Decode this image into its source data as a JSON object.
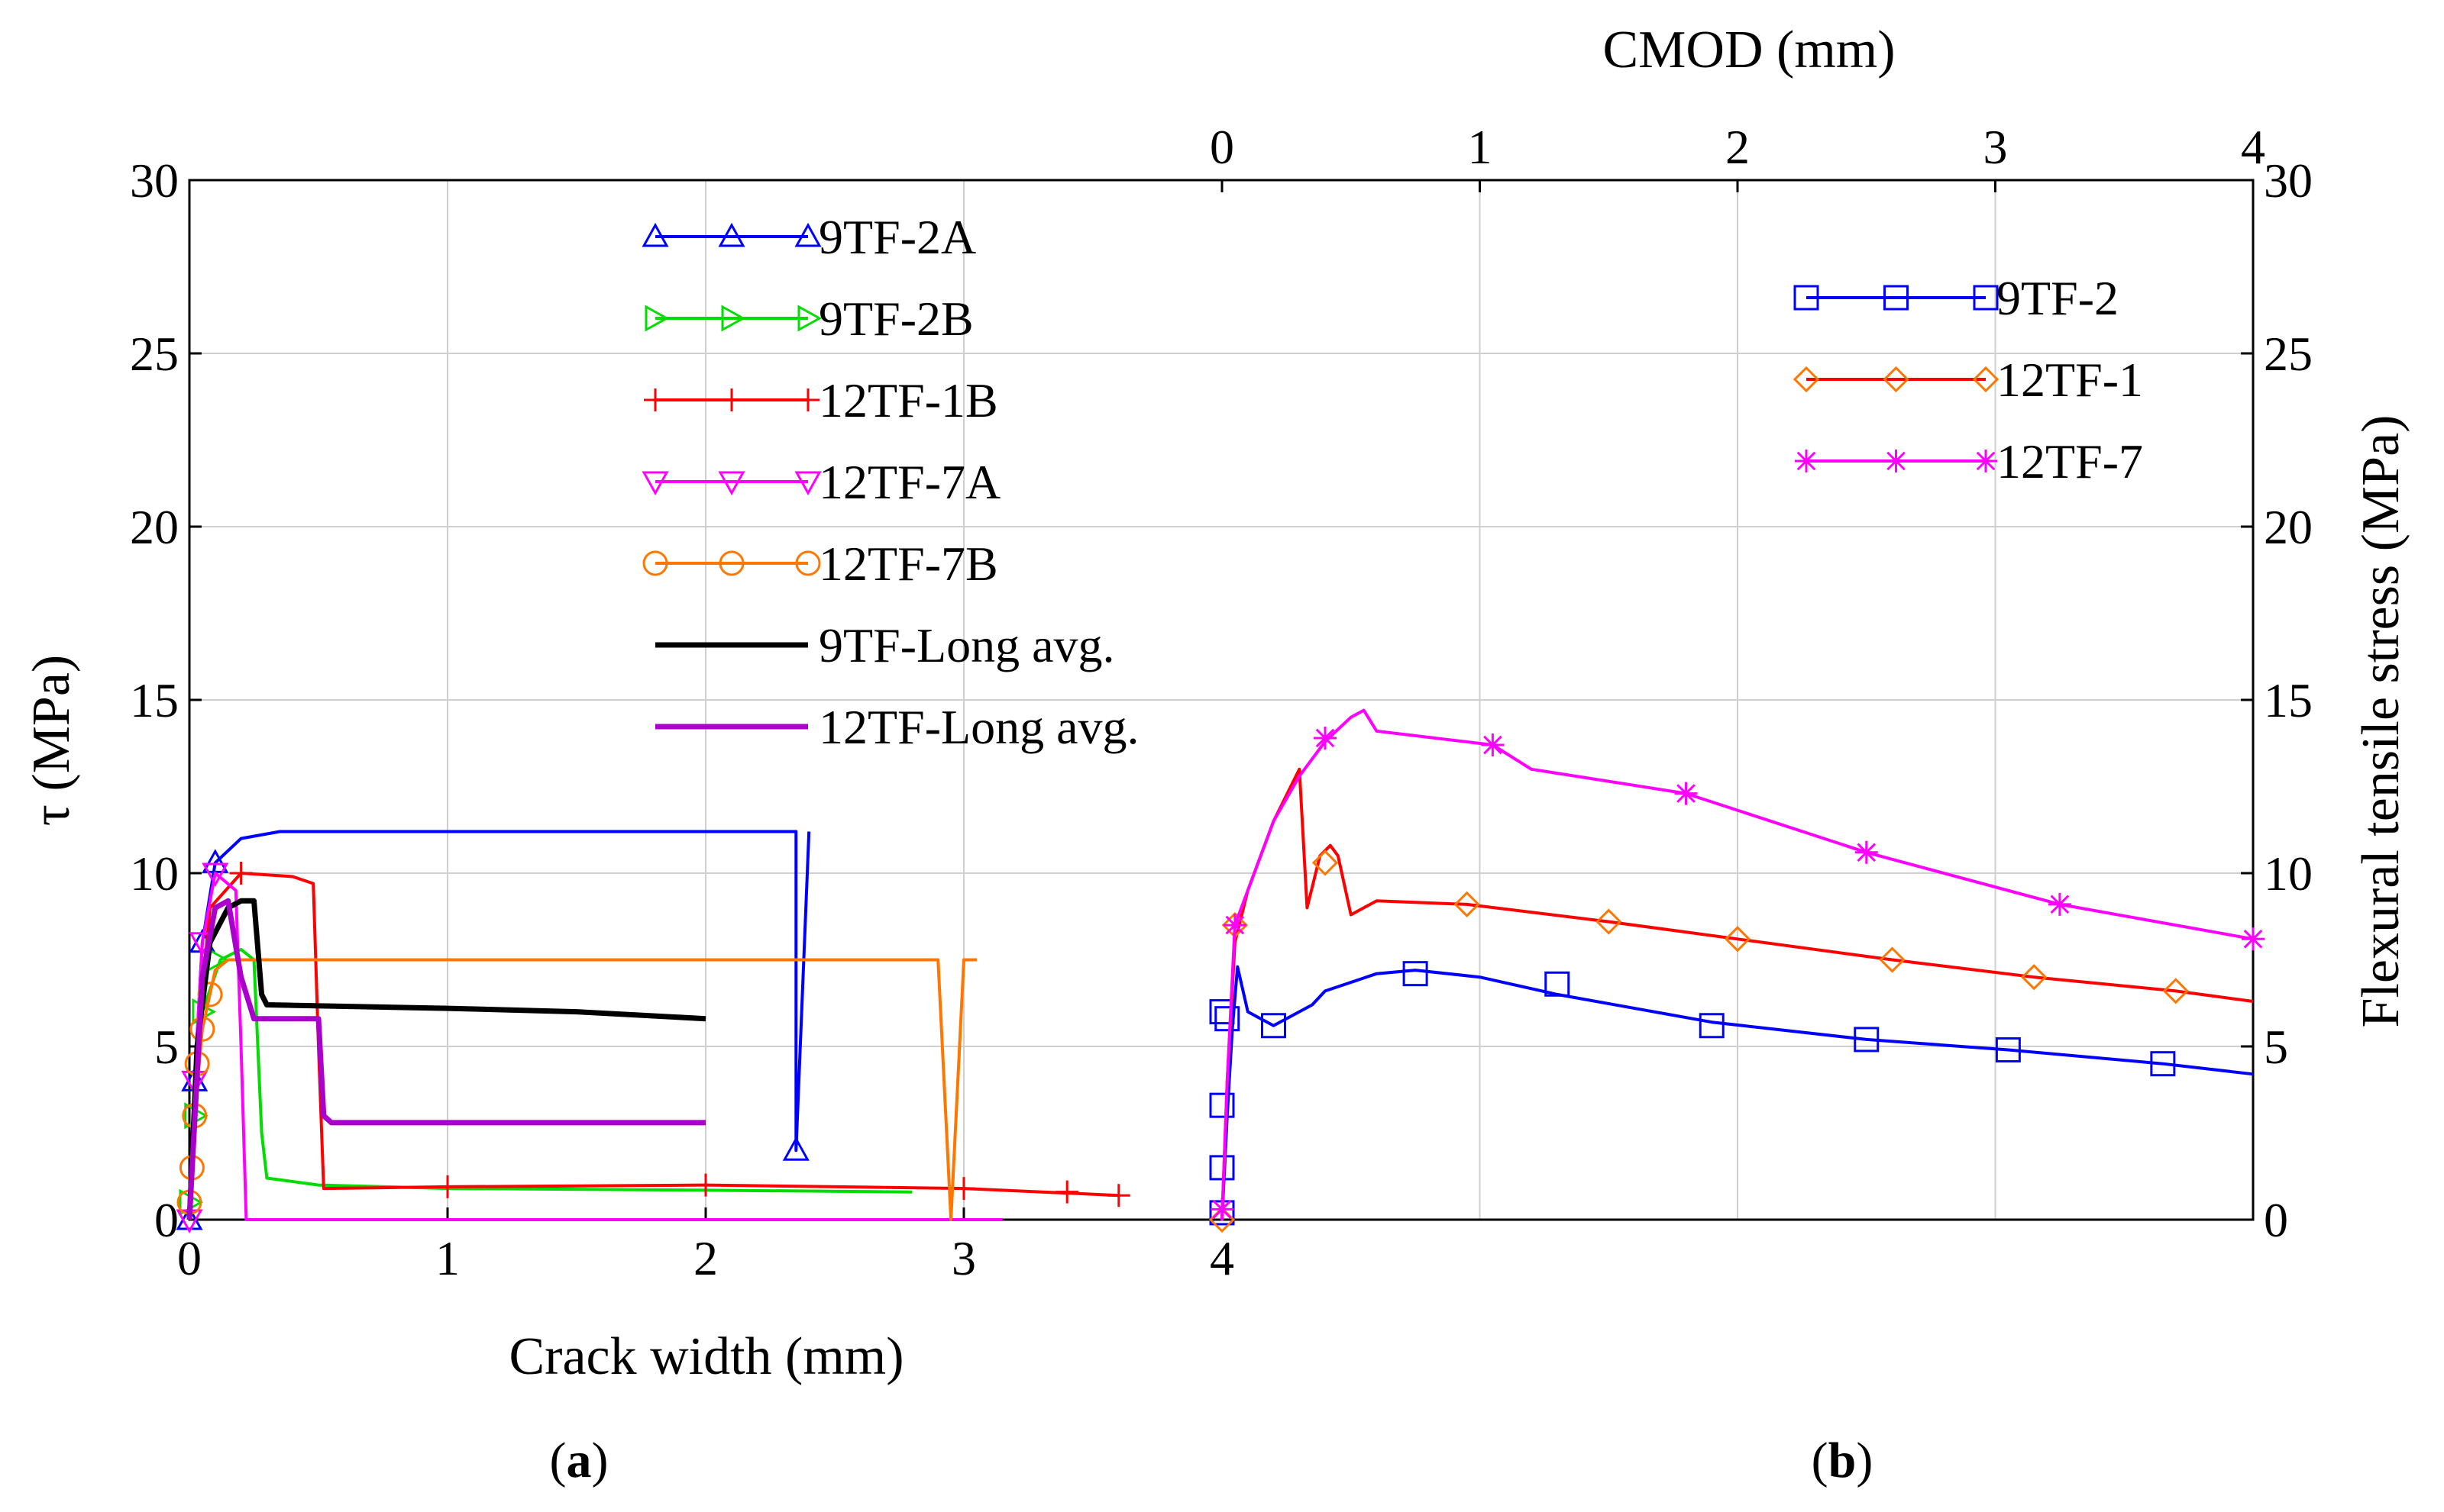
{
  "chart_data": [
    {
      "panel": "a",
      "type": "line",
      "xlabel": "Crack width (mm)",
      "ylabel": "τ (MPa)",
      "xlim": [
        0,
        4
      ],
      "ylim": [
        0,
        30
      ],
      "xticks": [
        "0",
        "1",
        "2",
        "3",
        "4"
      ],
      "yticks": [
        "0",
        "5",
        "10",
        "15",
        "20",
        "25",
        "30"
      ],
      "grid": true,
      "legend_position": "top-center",
      "series": [
        {
          "name": "9TF-2A",
          "color": "#0000ff",
          "marker": "triangle-up",
          "x": [
            0,
            0.02,
            0.05,
            0.1,
            0.2,
            0.35,
            1.0,
            2.0,
            2.35,
            2.35,
            2.4
          ],
          "y": [
            0,
            4,
            8,
            10.3,
            11.0,
            11.2,
            11.2,
            11.2,
            11.2,
            2.0,
            11.2
          ],
          "marker_x": [
            0,
            0.02,
            0.05,
            0.1,
            2.35
          ],
          "marker_y": [
            0,
            4,
            8,
            10.3,
            2.0
          ]
        },
        {
          "name": "9TF-2B",
          "color": "#00dd00",
          "marker": "triangle-right",
          "x": [
            0,
            0.02,
            0.05,
            0.12,
            0.2,
            0.25,
            0.28,
            0.3,
            0.5,
            1.0,
            2.0,
            2.8
          ],
          "y": [
            0,
            3,
            6,
            7.5,
            7.8,
            7.5,
            2.5,
            1.2,
            1.0,
            0.9,
            0.85,
            0.8
          ],
          "marker_x": [
            0,
            0.02,
            0.05,
            0.1
          ],
          "marker_y": [
            0.5,
            3,
            6,
            7.5
          ]
        },
        {
          "name": "12TF-1B",
          "color": "#ff0000",
          "marker": "plus",
          "x": [
            0,
            0.03,
            0.08,
            0.2,
            0.4,
            0.48,
            0.5,
            0.52,
            1.0,
            2.0,
            3.0,
            3.6
          ],
          "y": [
            0,
            5,
            9,
            10,
            9.9,
            9.7,
            5,
            0.9,
            0.95,
            1.0,
            0.9,
            0.7
          ],
          "marker_x": [
            0.2,
            1.0,
            2.0,
            3.0,
            3.4,
            3.6
          ],
          "marker_y": [
            10,
            0.95,
            1.0,
            0.9,
            0.8,
            0.7
          ]
        },
        {
          "name": "12TF-7A",
          "color": "#ff00ff",
          "marker": "triangle-down",
          "x": [
            0,
            0.02,
            0.05,
            0.1,
            0.18,
            0.2,
            0.22,
            3.15
          ],
          "y": [
            0,
            4,
            8,
            10,
            9.5,
            5,
            0,
            0
          ],
          "marker_x": [
            0,
            0.02,
            0.05,
            0.1
          ],
          "marker_y": [
            0,
            4,
            8,
            10
          ]
        },
        {
          "name": "12TF-7B",
          "color": "#ff7700",
          "marker": "circle",
          "x": [
            0,
            0.02,
            0.05,
            0.1,
            0.15,
            1.0,
            2.0,
            2.9,
            2.95,
            3.0,
            3.05
          ],
          "y": [
            0,
            3,
            5.5,
            7.2,
            7.5,
            7.5,
            7.5,
            7.5,
            0,
            7.5,
            7.5
          ],
          "marker_x": [
            0,
            0.01,
            0.02,
            0.03,
            0.05,
            0.08
          ],
          "marker_y": [
            0.5,
            1.5,
            3,
            4.5,
            5.5,
            6.5
          ]
        },
        {
          "name": "9TF-Long avg.",
          "color": "#000000",
          "marker": "none",
          "x": [
            0,
            0.03,
            0.08,
            0.15,
            0.2,
            0.25,
            0.28,
            0.3,
            1.0,
            1.5,
            2.0
          ],
          "y": [
            0,
            5,
            8,
            9,
            9.2,
            9.2,
            6.5,
            6.2,
            6.1,
            6.0,
            5.8
          ]
        },
        {
          "name": "12TF-Long avg.",
          "color": "#aa00cc",
          "marker": "none",
          "x": [
            0,
            0.05,
            0.1,
            0.15,
            0.2,
            0.25,
            0.5,
            0.52,
            0.55,
            1.0,
            2.0
          ],
          "y": [
            0,
            7,
            9,
            9.2,
            7,
            5.8,
            5.8,
            3,
            2.8,
            2.8,
            2.8
          ]
        }
      ]
    },
    {
      "panel": "b",
      "type": "line",
      "xlabel": "CMOD (mm)",
      "ylabel": "Flexural tensile stress (MPa)",
      "xlim": [
        0,
        4
      ],
      "ylim": [
        0,
        30
      ],
      "xticks": [
        "0",
        "1",
        "2",
        "3",
        "4"
      ],
      "yticks": [
        "0",
        "5",
        "10",
        "15",
        "20",
        "25",
        "30"
      ],
      "grid": true,
      "legend_position": "top-right",
      "series": [
        {
          "name": "9TF-2",
          "color": "#0000ff",
          "marker": "square",
          "x": [
            0,
            0.02,
            0.04,
            0.06,
            0.1,
            0.2,
            0.35,
            0.4,
            0.6,
            0.75,
            1.0,
            1.3,
            1.9,
            2.5,
            3.05,
            3.65,
            4.0
          ],
          "y": [
            0,
            3,
            5.5,
            7.3,
            6.0,
            5.6,
            6.2,
            6.6,
            7.1,
            7.2,
            7.0,
            6.5,
            5.7,
            5.2,
            4.9,
            4.5,
            4.2
          ],
          "marker_x": [
            0,
            0,
            0,
            0,
            0.02,
            0.2,
            0.75,
            1.3,
            1.9,
            2.5,
            3.05,
            3.65
          ],
          "marker_y": [
            0.2,
            1.5,
            3.3,
            6.0,
            5.8,
            5.6,
            7.1,
            6.8,
            5.6,
            5.2,
            4.9,
            4.5
          ]
        },
        {
          "name": "12TF-1",
          "color": "#ff0000",
          "marker": "diamond",
          "x": [
            0,
            0.02,
            0.05,
            0.1,
            0.2,
            0.3,
            0.33,
            0.38,
            0.42,
            0.45,
            0.5,
            0.6,
            0.95,
            1.5,
            2.0,
            2.6,
            3.15,
            3.7,
            4.0
          ],
          "y": [
            0,
            4,
            8,
            9.5,
            11.5,
            13,
            9,
            10.5,
            10.8,
            10.5,
            8.8,
            9.2,
            9.1,
            8.6,
            8.1,
            7.5,
            7.0,
            6.6,
            6.3
          ],
          "marker_x": [
            0,
            0.05,
            0.4,
            0.95,
            1.5,
            2.0,
            2.6,
            3.15,
            3.7
          ],
          "marker_y": [
            0,
            8.5,
            10.3,
            9.1,
            8.6,
            8.1,
            7.5,
            7.0,
            6.6
          ],
          "marker_color": "#ff7700"
        },
        {
          "name": "12TF-7",
          "color": "#ff00ff",
          "marker": "asterisk",
          "x": [
            0,
            0.02,
            0.05,
            0.2,
            0.3,
            0.4,
            0.5,
            0.55,
            0.6,
            1.05,
            1.2,
            1.8,
            2.5,
            3.25,
            4.0
          ],
          "y": [
            0,
            4,
            8.5,
            11.5,
            12.8,
            13.8,
            14.5,
            14.7,
            14.1,
            13.7,
            13.0,
            12.3,
            10.6,
            9.1,
            8.1
          ],
          "marker_x": [
            0,
            0.05,
            0.4,
            1.05,
            1.8,
            2.5,
            3.25,
            4.0
          ],
          "marker_y": [
            0.3,
            8.5,
            13.9,
            13.7,
            12.3,
            10.6,
            9.1,
            8.1
          ]
        }
      ]
    }
  ],
  "panel_labels": {
    "a": "a",
    "b": "b"
  }
}
